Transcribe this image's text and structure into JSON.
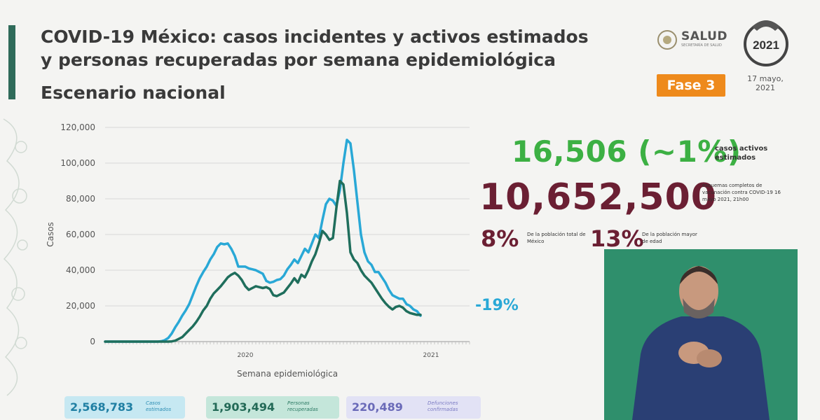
{
  "header": {
    "title": "COVID-19 México: casos incidentes y activos estimados y personas recuperadas por semana epidemiológica",
    "subtitle": "Escenario nacional",
    "ministry": "SALUD",
    "ministry_sub": "SECRETARÍA DE SALUD",
    "phase": "Fase 3",
    "date": "17 mayo, 2021",
    "seal_year": "2021"
  },
  "kpis": {
    "active_cases": "16,506 (~1%)",
    "active_cases_label": "casos activos estimados",
    "vaccination_total": "10,652,500",
    "vaccination_label": "esquemas completos de vacunación contra COVID-19 16 mayo 2021, 21h00",
    "pct_total": "8%",
    "pct_total_label": "De la población total de México",
    "pct_elderly": "13%",
    "pct_elderly_label": "De la población mayor de edad",
    "trend": "-19%"
  },
  "bottom": {
    "estimated_cases": "2,568,783",
    "estimated_cases_label": "Casos estimados",
    "recovered": "1,903,494",
    "recovered_label": "Personas recuperadas",
    "deaths": "220,489",
    "deaths_label": "Defunciones confirmadas"
  },
  "colors": {
    "light_series": "#29a8d6",
    "dark_series": "#1f6e5c",
    "accent_green": "#3cb043",
    "accent_wine": "#6b1f33",
    "phase_orange": "#ee8a1c"
  },
  "chart_data": {
    "type": "line",
    "title": "",
    "xlabel": "Semana epidemiológica",
    "ylabel": "Casos",
    "ylim": [
      0,
      120000
    ],
    "yticks": [
      0,
      20000,
      40000,
      60000,
      80000,
      100000,
      120000
    ],
    "ytick_labels": [
      "0",
      "20,000",
      "40,000",
      "60,000",
      "80,000",
      "100,000",
      "120,000"
    ],
    "year_labels": [
      {
        "label": "2020",
        "week_index": 40
      },
      {
        "label": "2021",
        "week_index": 93
      }
    ],
    "grid": true,
    "x_weeks": 105,
    "series": [
      {
        "values": [
          0,
          0,
          0,
          0,
          0,
          0,
          0,
          0,
          0,
          0,
          0,
          0,
          0,
          0,
          0,
          0,
          200,
          800,
          2000,
          4500,
          8000,
          11000,
          14500,
          17500,
          21000,
          26000,
          31000,
          35500,
          39000,
          42000,
          46000,
          49000,
          53000,
          55000,
          54500,
          55000,
          52000,
          48000,
          42000,
          42000,
          42000,
          41000,
          40500,
          40000,
          39000,
          38000,
          34000,
          33000,
          33500,
          34500,
          35000,
          37000,
          40500,
          43000,
          46000,
          44000,
          48000,
          52000,
          50000,
          55000,
          60000,
          58000,
          68000,
          77000,
          80000,
          79000,
          76000,
          85000,
          100000,
          113000,
          111000,
          96000,
          78000,
          60000,
          50000,
          45000,
          43000,
          39000,
          39000,
          36000,
          33000,
          29000,
          26000,
          25000,
          24000,
          24000,
          21000,
          20000,
          18000,
          17000,
          14500
        ]
      },
      {
        "values": [
          0,
          0,
          0,
          0,
          0,
          0,
          0,
          0,
          0,
          0,
          0,
          0,
          0,
          0,
          0,
          0,
          0,
          0,
          0,
          100,
          500,
          1500,
          2500,
          4500,
          6500,
          8500,
          11000,
          14000,
          17500,
          20000,
          24000,
          27000,
          29000,
          31000,
          33500,
          36000,
          37500,
          38500,
          37000,
          34500,
          31000,
          29000,
          30000,
          31000,
          30500,
          30000,
          30500,
          29500,
          26000,
          25500,
          26500,
          27500,
          30000,
          32500,
          35500,
          33000,
          37500,
          36000,
          40000,
          45000,
          49000,
          55000,
          62000,
          60000,
          57000,
          58000,
          75000,
          90000,
          88000,
          72000,
          50000,
          46000,
          44000,
          40000,
          37000,
          35000,
          33000,
          30000,
          27000,
          24000,
          21500,
          19500,
          18000,
          19500,
          20000,
          19000,
          17000,
          16000,
          15500,
          15000,
          15000
        ]
      }
    ]
  }
}
